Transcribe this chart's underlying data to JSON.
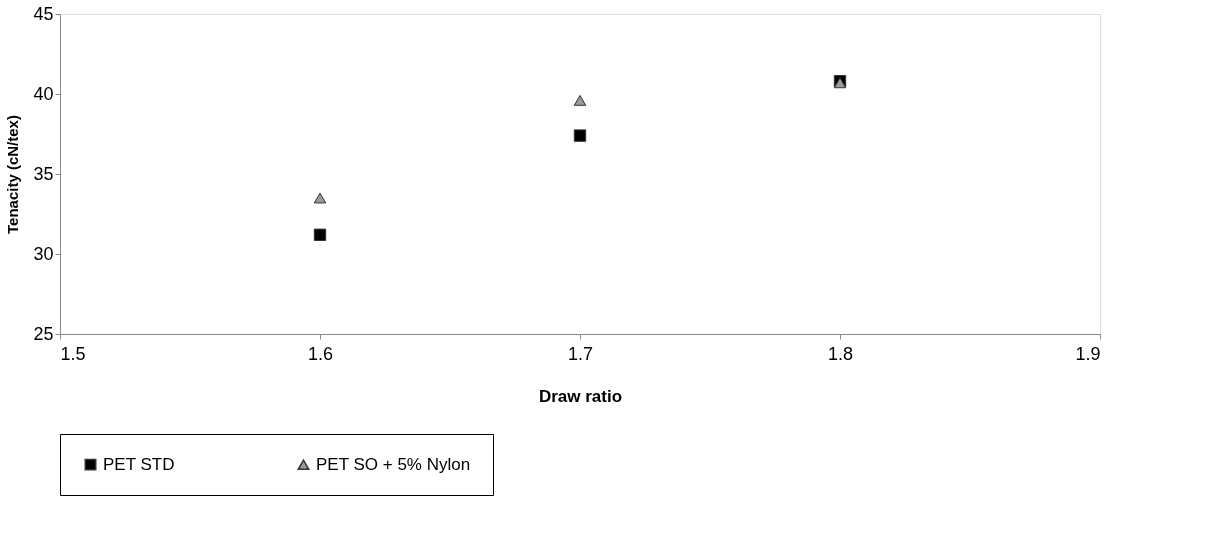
{
  "chart_data": {
    "type": "scatter",
    "xlabel": "Draw ratio",
    "ylabel": "Tenacity (cN/tex)",
    "x": [
      1.6,
      1.7,
      1.8
    ],
    "series": [
      {
        "name": "PET STD",
        "color": "#000000",
        "marker": "square",
        "values": [
          31.2,
          37.4,
          40.8
        ]
      },
      {
        "name": "PET SO + 5% Nylon",
        "color": "#9a9a9a",
        "marker": "triangle",
        "values": [
          33.5,
          39.6,
          40.7
        ]
      }
    ],
    "xlim": [
      1.5,
      1.9
    ],
    "xticks": [
      1.5,
      1.6,
      1.7,
      1.8,
      1.9
    ],
    "ylim": [
      25,
      45
    ],
    "yticks": [
      25,
      30,
      35,
      40,
      45
    ],
    "grid": false,
    "legend": "bottom"
  }
}
